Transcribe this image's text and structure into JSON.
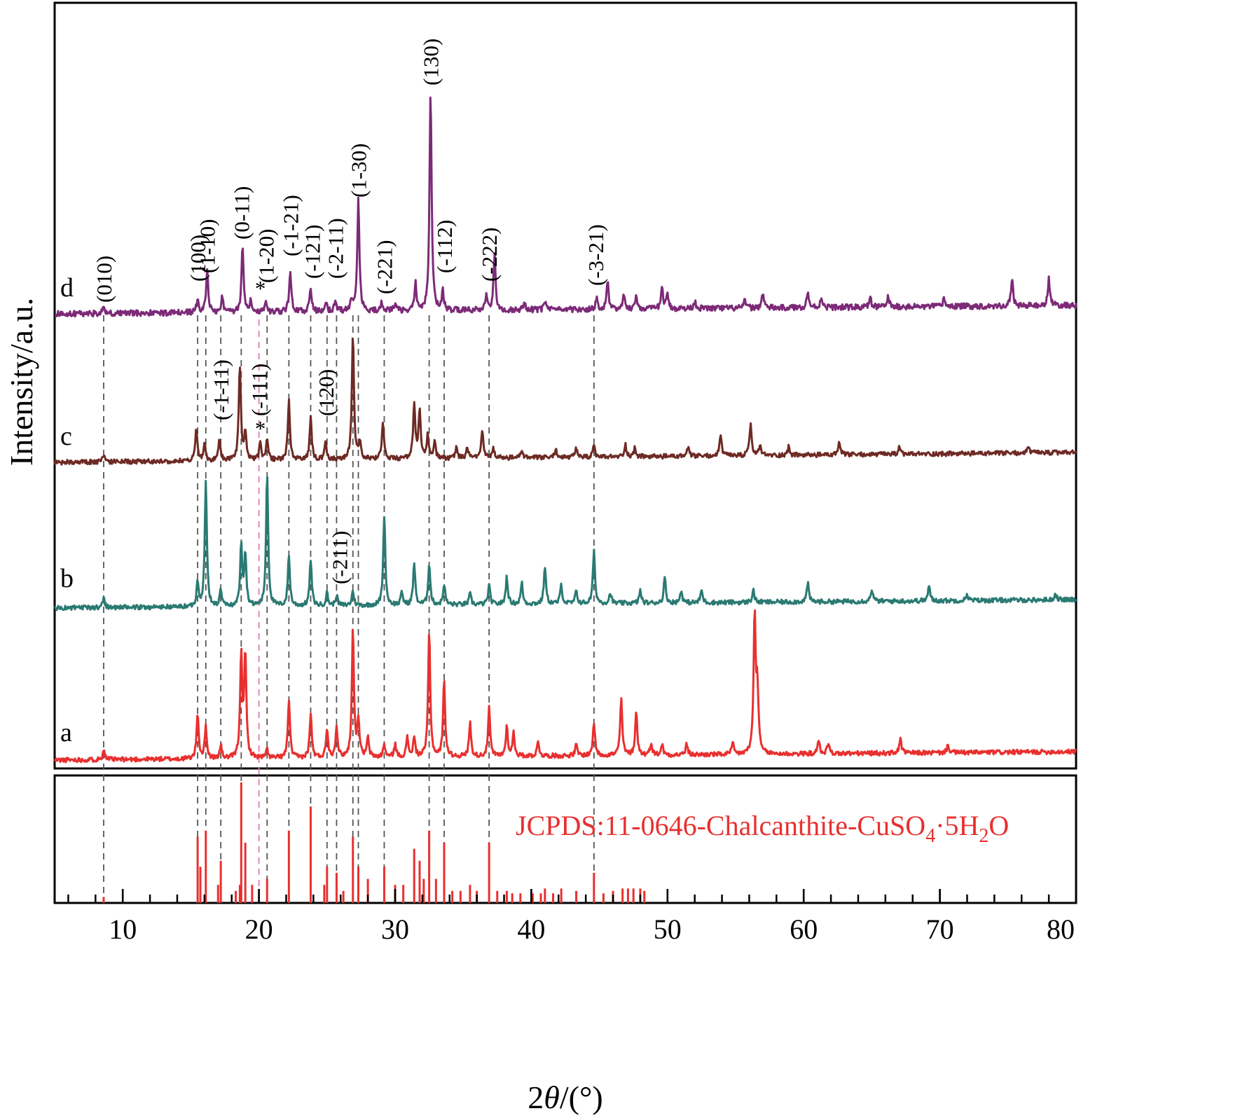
{
  "chart_data": {
    "type": "line",
    "xlabel_parts": [
      "2",
      "θ",
      "/(°)"
    ],
    "ylabel": "Intensity/a.u.",
    "xlim": [
      5,
      80
    ],
    "x_ticks": [
      "10",
      "20",
      "30",
      "40",
      "50",
      "60",
      "70",
      "80"
    ],
    "colors": {
      "a": "#e8302f",
      "b": "#2a7a72",
      "c": "#6e2a24",
      "d": "#7c2a78",
      "guide": "#555555",
      "guide_highlight": "#e07ab3",
      "highlight_text": "#d0368a",
      "reference": "#e8302f"
    },
    "series": [
      {
        "name": "a",
        "baseline": 0,
        "peaks": [
          [
            8.6,
            0.5
          ],
          [
            15.5,
            2.2
          ],
          [
            16.1,
            1.5
          ],
          [
            17.2,
            0.6
          ],
          [
            18.7,
            5.0
          ],
          [
            19.0,
            4.9
          ],
          [
            20.6,
            0.4
          ],
          [
            22.2,
            2.8
          ],
          [
            23.8,
            2.1
          ],
          [
            25.0,
            1.4
          ],
          [
            25.7,
            1.5
          ],
          [
            26.9,
            6.1
          ],
          [
            27.3,
            1.8
          ],
          [
            28.0,
            0.9
          ],
          [
            29.2,
            0.6
          ],
          [
            30.0,
            0.6
          ],
          [
            30.9,
            0.9
          ],
          [
            31.4,
            0.9
          ],
          [
            32.5,
            6.0
          ],
          [
            33.6,
            3.6
          ],
          [
            35.5,
            1.6
          ],
          [
            36.9,
            2.3
          ],
          [
            38.2,
            1.4
          ],
          [
            38.7,
            1.1
          ],
          [
            40.5,
            0.7
          ],
          [
            43.3,
            0.5
          ],
          [
            44.6,
            1.6
          ],
          [
            46.6,
            2.7
          ],
          [
            47.7,
            2.1
          ],
          [
            48.8,
            0.6
          ],
          [
            49.6,
            0.5
          ],
          [
            51.4,
            0.5
          ],
          [
            54.8,
            0.5
          ],
          [
            56.4,
            6.6
          ],
          [
            56.6,
            2.9
          ],
          [
            61.1,
            0.6
          ],
          [
            61.8,
            0.5
          ],
          [
            67.1,
            0.7
          ],
          [
            70.6,
            0.4
          ]
        ]
      },
      {
        "name": "b",
        "baseline": 0,
        "peaks": [
          [
            8.6,
            0.5
          ],
          [
            15.5,
            1.2
          ],
          [
            16.1,
            6.0
          ],
          [
            17.2,
            0.8
          ],
          [
            18.7,
            2.9
          ],
          [
            19.0,
            2.5
          ],
          [
            20.6,
            6.4
          ],
          [
            22.2,
            2.4
          ],
          [
            23.8,
            2.2
          ],
          [
            25.0,
            0.6
          ],
          [
            25.7,
            0.5
          ],
          [
            26.9,
            0.7
          ],
          [
            29.2,
            4.3
          ],
          [
            30.5,
            0.6
          ],
          [
            31.4,
            2.0
          ],
          [
            32.5,
            2.0
          ],
          [
            33.6,
            1.0
          ],
          [
            35.5,
            0.5
          ],
          [
            36.9,
            0.9
          ],
          [
            38.2,
            1.3
          ],
          [
            39.3,
            1.0
          ],
          [
            41.0,
            1.8
          ],
          [
            42.2,
            0.9
          ],
          [
            43.3,
            0.6
          ],
          [
            44.6,
            2.5
          ],
          [
            45.8,
            0.5
          ],
          [
            48.0,
            0.6
          ],
          [
            49.8,
            1.2
          ],
          [
            51.0,
            0.6
          ],
          [
            52.5,
            0.6
          ],
          [
            56.3,
            0.6
          ],
          [
            60.3,
            0.9
          ],
          [
            65.0,
            0.6
          ],
          [
            69.2,
            0.7
          ],
          [
            72.0,
            0.3
          ],
          [
            78.5,
            0.3
          ]
        ]
      },
      {
        "name": "c",
        "baseline": 0,
        "peaks": [
          [
            8.6,
            0.3
          ],
          [
            15.4,
            1.6
          ],
          [
            16.0,
            0.8
          ],
          [
            17.1,
            1.0
          ],
          [
            18.6,
            4.5
          ],
          [
            19.0,
            1.3
          ],
          [
            20.1,
            0.8
          ],
          [
            20.6,
            1.0
          ],
          [
            22.2,
            2.8
          ],
          [
            23.8,
            2.0
          ],
          [
            24.9,
            0.8
          ],
          [
            26.9,
            6.0
          ],
          [
            27.4,
            0.8
          ],
          [
            29.1,
            1.8
          ],
          [
            31.4,
            2.6
          ],
          [
            31.8,
            2.3
          ],
          [
            32.4,
            1.1
          ],
          [
            32.9,
            0.8
          ],
          [
            34.5,
            0.5
          ],
          [
            35.3,
            0.5
          ],
          [
            36.4,
            1.3
          ],
          [
            37.2,
            0.5
          ],
          [
            39.3,
            0.4
          ],
          [
            41.8,
            0.4
          ],
          [
            43.3,
            0.4
          ],
          [
            44.6,
            0.5
          ],
          [
            46.9,
            0.6
          ],
          [
            47.6,
            0.4
          ],
          [
            51.5,
            0.4
          ],
          [
            53.9,
            1.0
          ],
          [
            56.1,
            1.5
          ],
          [
            56.8,
            0.5
          ],
          [
            58.9,
            0.4
          ],
          [
            62.6,
            0.6
          ],
          [
            67.0,
            0.3
          ],
          [
            76.5,
            0.3
          ]
        ]
      },
      {
        "name": "d",
        "baseline": 0,
        "peaks": [
          [
            8.6,
            0.2
          ],
          [
            15.5,
            0.5
          ],
          [
            16.2,
            1.7
          ],
          [
            17.3,
            0.6
          ],
          [
            18.8,
            2.5
          ],
          [
            19.4,
            0.5
          ],
          [
            20.5,
            0.4
          ],
          [
            22.3,
            1.6
          ],
          [
            23.8,
            0.9
          ],
          [
            24.9,
            0.4
          ],
          [
            25.6,
            0.4
          ],
          [
            26.8,
            0.5
          ],
          [
            27.3,
            4.2
          ],
          [
            29.0,
            0.3
          ],
          [
            30.0,
            0.3
          ],
          [
            31.5,
            1.0
          ],
          [
            32.6,
            8.3
          ],
          [
            33.5,
            0.7
          ],
          [
            36.7,
            0.6
          ],
          [
            37.3,
            2.1
          ],
          [
            39.5,
            0.3
          ],
          [
            41.0,
            0.3
          ],
          [
            44.8,
            0.4
          ],
          [
            45.6,
            1.1
          ],
          [
            46.8,
            0.5
          ],
          [
            47.7,
            0.5
          ],
          [
            49.6,
            0.8
          ],
          [
            50.0,
            0.5
          ],
          [
            52.0,
            0.3
          ],
          [
            55.7,
            0.3
          ],
          [
            57.0,
            0.6
          ],
          [
            60.3,
            0.6
          ],
          [
            61.3,
            0.4
          ],
          [
            64.9,
            0.3
          ],
          [
            66.2,
            0.4
          ],
          [
            70.3,
            0.3
          ],
          [
            75.3,
            1.0
          ],
          [
            78.0,
            1.0
          ]
        ]
      }
    ],
    "curve_labels": [
      "a",
      "b",
      "c",
      "d"
    ],
    "hkl_labels_d": [
      {
        "text": "(010)",
        "x": 8.6
      },
      {
        "text": "(100)",
        "x": 15.5
      },
      {
        "text": "(1-10)",
        "x": 16.2
      },
      {
        "text": "(0-11)",
        "x": 18.7
      },
      {
        "text": "(1-20)",
        "x": 20.5
      },
      {
        "text": "(-1-21)",
        "x": 22.3
      },
      {
        "text": "(-121)",
        "x": 23.9
      },
      {
        "text": "(-2-11)",
        "x": 25.6
      },
      {
        "text": "(1-30)",
        "x": 27.3
      },
      {
        "text": "(-221)",
        "x": 29.2
      },
      {
        "text": "(130)",
        "x": 32.6
      },
      {
        "text": "(-112)",
        "x": 33.6
      },
      {
        "text": "(-222)",
        "x": 36.9
      },
      {
        "text": "(-3-21)",
        "x": 44.7
      }
    ],
    "hkl_labels_c": [
      {
        "text": "(-1-11)",
        "x": 17.2
      },
      {
        "text": "(-111)",
        "x": 20.0,
        "highlight": true
      },
      {
        "text": "(120)",
        "x": 24.9
      }
    ],
    "hkl_labels_b": [
      {
        "text": "(-211)",
        "x": 25.9
      }
    ],
    "star_marks": [
      {
        "text": "*",
        "x": 20.0,
        "curve": "d"
      },
      {
        "text": "*",
        "x": 20.0,
        "curve": "c"
      }
    ],
    "guide_lines_x": [
      8.6,
      15.5,
      16.1,
      17.2,
      18.7,
      20.6,
      22.2,
      23.8,
      25.0,
      25.7,
      26.9,
      27.3,
      29.2,
      32.5,
      33.6,
      36.9,
      44.6
    ],
    "guide_highlight_x": 20.0,
    "reference": {
      "label_main": "JCPDS:11-0646-Chalcanthite-CuSO",
      "label_sub1": "4",
      "label_mid": "·5H",
      "label_sub2": "2",
      "label_end": "O",
      "lines": [
        [
          8.6,
          0.05
        ],
        [
          15.5,
          0.55
        ],
        [
          15.7,
          0.3
        ],
        [
          16.1,
          0.6
        ],
        [
          17.0,
          0.15
        ],
        [
          17.2,
          0.35
        ],
        [
          18.3,
          0.1
        ],
        [
          18.6,
          0.15
        ],
        [
          18.7,
          1.0
        ],
        [
          19.0,
          0.5
        ],
        [
          19.5,
          0.15
        ],
        [
          20.6,
          0.2
        ],
        [
          22.2,
          0.6
        ],
        [
          23.8,
          0.8
        ],
        [
          24.8,
          0.15
        ],
        [
          25.0,
          0.3
        ],
        [
          25.7,
          0.25
        ],
        [
          26.2,
          0.1
        ],
        [
          26.9,
          0.55
        ],
        [
          27.3,
          0.3
        ],
        [
          28.0,
          0.2
        ],
        [
          29.2,
          0.3
        ],
        [
          30.0,
          0.15
        ],
        [
          30.6,
          0.15
        ],
        [
          31.4,
          0.45
        ],
        [
          31.8,
          0.35
        ],
        [
          32.1,
          0.2
        ],
        [
          32.5,
          0.6
        ],
        [
          33.0,
          0.2
        ],
        [
          33.6,
          0.5
        ],
        [
          34.2,
          0.1
        ],
        [
          34.8,
          0.1
        ],
        [
          35.5,
          0.15
        ],
        [
          36.0,
          0.1
        ],
        [
          36.9,
          0.5
        ],
        [
          37.5,
          0.1
        ],
        [
          38.2,
          0.1
        ],
        [
          38.6,
          0.08
        ],
        [
          39.2,
          0.08
        ],
        [
          40.1,
          0.08
        ],
        [
          40.7,
          0.08
        ],
        [
          41.0,
          0.12
        ],
        [
          41.6,
          0.08
        ],
        [
          42.2,
          0.12
        ],
        [
          43.3,
          0.1
        ],
        [
          44.6,
          0.25
        ],
        [
          45.3,
          0.08
        ],
        [
          46.0,
          0.1
        ],
        [
          46.7,
          0.12
        ],
        [
          47.1,
          0.12
        ],
        [
          47.5,
          0.12
        ],
        [
          48.0,
          0.12
        ],
        [
          48.3,
          0.1
        ]
      ]
    }
  }
}
